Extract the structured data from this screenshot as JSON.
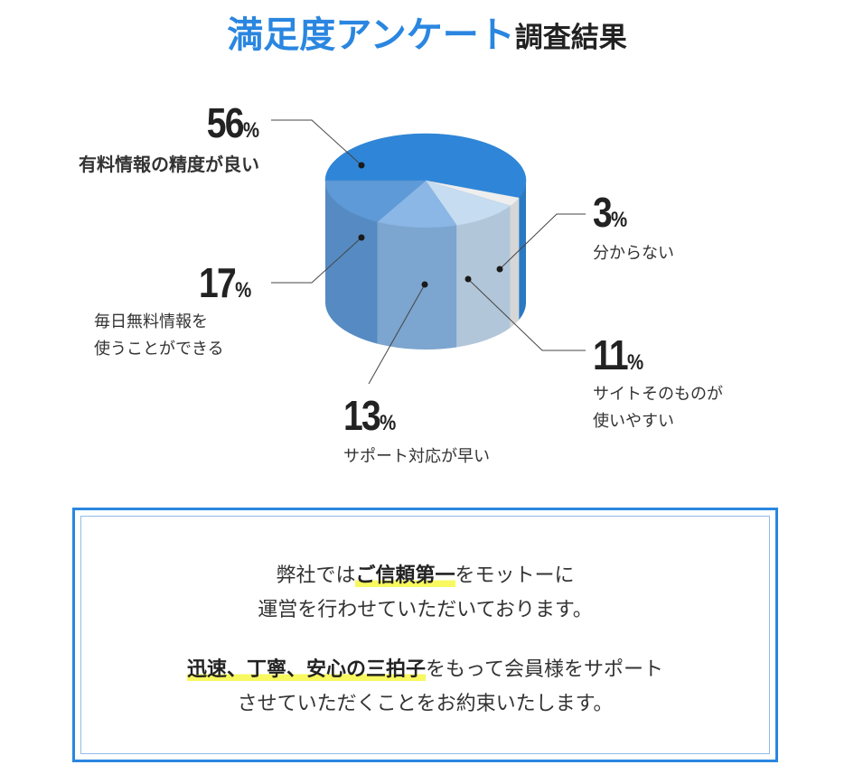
{
  "title": {
    "highlight": "満足度アンケート",
    "rest": "調査結果"
  },
  "chart_data": {
    "type": "pie",
    "title": "満足度アンケート調査結果",
    "slices": [
      {
        "label": "有料情報の精度が良い",
        "value": 56,
        "display": "56",
        "color": "#2f86d8"
      },
      {
        "label": "分からない",
        "value": 3,
        "display": "3",
        "color": "#eeeeee"
      },
      {
        "label": "サイトそのものが使いやすい",
        "value": 11,
        "display": "11",
        "color": "#c6dcf1"
      },
      {
        "label": "サポート対応が早い",
        "value": 13,
        "display": "13",
        "color": "#8ab7e6"
      },
      {
        "label": "毎日無料情報を使うことができる",
        "value": 17,
        "display": "17",
        "color": "#5e9ad8"
      }
    ],
    "label_lines": {
      "s4": [
        "毎日無料情報を",
        "使うことができる"
      ],
      "s2": [
        "サイトそのものが",
        "使いやすい"
      ]
    },
    "unit": "%"
  },
  "message": {
    "line1_pre": "弊社では",
    "line1_hl": "ご信頼第一",
    "line1_post": "をモットーに",
    "line2": "運営を行わせていただいております。",
    "line3_hl": "迅速、丁寧、安心の三拍子",
    "line3_post": "をもって会員様をサポート",
    "line4": "させていただくことをお約束いたします。"
  }
}
